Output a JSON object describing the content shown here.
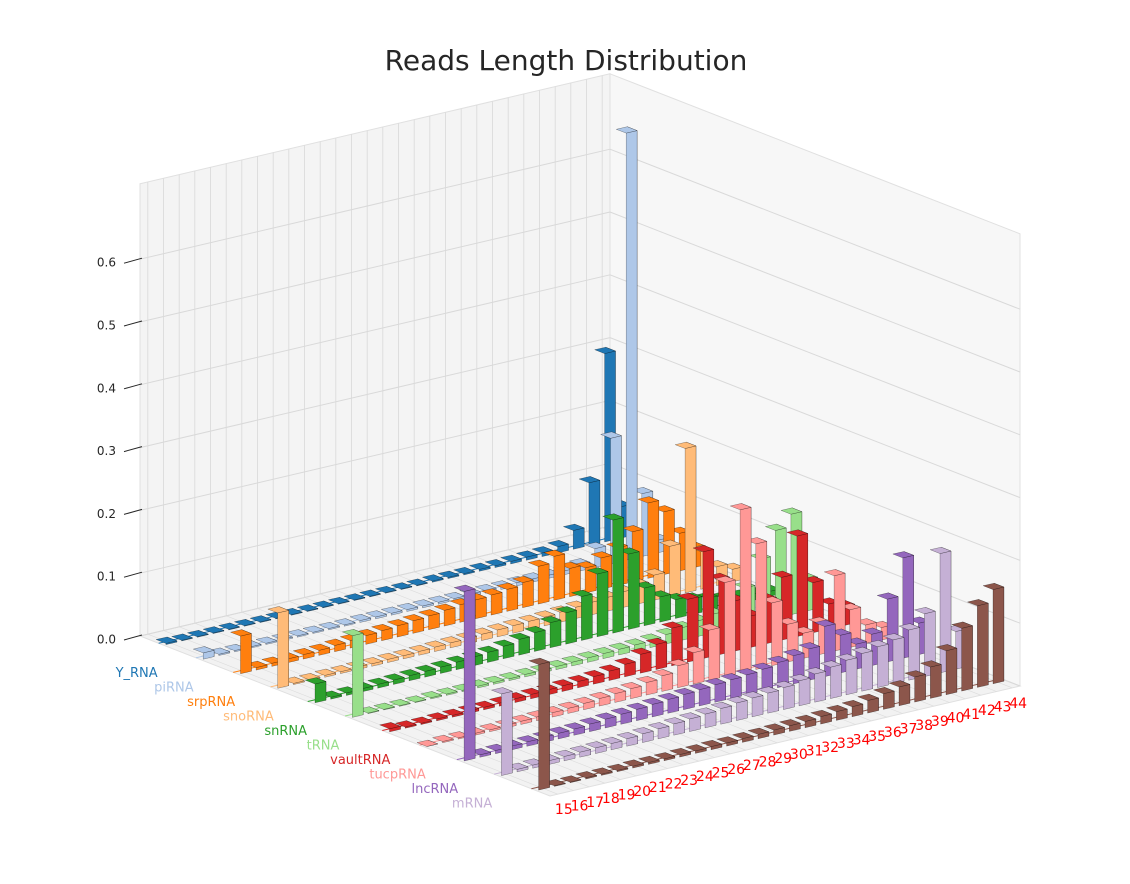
{
  "chart_data": {
    "type": "bar3d",
    "title": "Reads Length Distribution",
    "x": [
      15,
      16,
      17,
      18,
      19,
      20,
      21,
      22,
      23,
      24,
      25,
      26,
      27,
      28,
      29,
      30,
      31,
      32,
      33,
      34,
      35,
      36,
      37,
      38,
      39,
      40,
      41,
      42,
      43,
      44
    ],
    "xticks": [
      15,
      16,
      17,
      18,
      19,
      20,
      21,
      22,
      23,
      24,
      25,
      26,
      27,
      28,
      29,
      30,
      31,
      32,
      33,
      34,
      35,
      36,
      37,
      38,
      39,
      40,
      41,
      42,
      43,
      44
    ],
    "xtick_color": "#ff0000",
    "zlim": [
      0,
      0.72
    ],
    "zticks": [
      {
        "value": 0,
        "label": "0.0"
      },
      {
        "value": 0.1,
        "label": "0.1"
      },
      {
        "value": 0.2,
        "label": "0.2"
      },
      {
        "value": 0.3,
        "label": "0.3"
      },
      {
        "value": 0.4,
        "label": "0.4"
      },
      {
        "value": 0.5,
        "label": "0.5"
      },
      {
        "value": 0.6,
        "label": "0.6"
      }
    ],
    "grid": true,
    "series": [
      {
        "name": "Y_RNA",
        "color": "#1f77b4",
        "values": [
          0.002,
          0.001,
          0.001,
          0.001,
          0.001,
          0.001,
          0.001,
          0.001,
          0.001,
          0.001,
          0.001,
          0.001,
          0.001,
          0.001,
          0.001,
          0.001,
          0.001,
          0.002,
          0.002,
          0.002,
          0.003,
          0.003,
          0.004,
          0.005,
          0.006,
          0.01,
          0.03,
          0.1,
          0.3,
          0.05
        ]
      },
      {
        "name": "piRNA",
        "color": "#aec7e8",
        "values": [
          0.01,
          0.002,
          0.002,
          0.002,
          0.002,
          0.002,
          0.002,
          0.002,
          0.002,
          0.002,
          0.003,
          0.003,
          0.003,
          0.003,
          0.003,
          0.003,
          0.003,
          0.004,
          0.004,
          0.004,
          0.005,
          0.005,
          0.005,
          0.006,
          0.01,
          0.03,
          0.2,
          0.68,
          0.1,
          0.02
        ]
      },
      {
        "name": "srpRNA",
        "color": "#ff7f0e",
        "values": [
          0.06,
          0.004,
          0.005,
          0.006,
          0.007,
          0.008,
          0.01,
          0.012,
          0.014,
          0.016,
          0.018,
          0.02,
          0.022,
          0.025,
          0.028,
          0.03,
          0.032,
          0.035,
          0.04,
          0.06,
          0.07,
          0.045,
          0.04,
          0.05,
          0.06,
          0.08,
          0.12,
          0.1,
          0.06,
          0.03
        ]
      },
      {
        "name": "snoRNA",
        "color": "#ffbb78",
        "values": [
          0.12,
          0.002,
          0.002,
          0.003,
          0.003,
          0.004,
          0.004,
          0.005,
          0.005,
          0.006,
          0.007,
          0.008,
          0.009,
          0.01,
          0.011,
          0.012,
          0.013,
          0.014,
          0.016,
          0.018,
          0.02,
          0.022,
          0.025,
          0.03,
          0.04,
          0.08,
          0.23,
          0.06,
          0.03,
          0.02
        ]
      },
      {
        "name": "snRNA",
        "color": "#2ca02c",
        "values": [
          0.03,
          0.003,
          0.004,
          0.005,
          0.006,
          0.007,
          0.008,
          0.009,
          0.01,
          0.012,
          0.014,
          0.016,
          0.02,
          0.025,
          0.03,
          0.04,
          0.05,
          0.07,
          0.1,
          0.18,
          0.12,
          0.06,
          0.04,
          0.03,
          0.025,
          0.02,
          0.015,
          0.012,
          0.01,
          0.008
        ]
      },
      {
        "name": "tRNA",
        "color": "#98df8a",
        "values": [
          0.13,
          0.001,
          0.001,
          0.001,
          0.001,
          0.002,
          0.002,
          0.002,
          0.003,
          0.003,
          0.003,
          0.004,
          0.004,
          0.005,
          0.006,
          0.007,
          0.008,
          0.009,
          0.01,
          0.012,
          0.015,
          0.02,
          0.025,
          0.03,
          0.04,
          0.06,
          0.1,
          0.14,
          0.16,
          0.05
        ]
      },
      {
        "name": "vaultRNA",
        "color": "#d62728",
        "values": [
          0.005,
          0.002,
          0.002,
          0.003,
          0.003,
          0.004,
          0.004,
          0.005,
          0.006,
          0.007,
          0.008,
          0.009,
          0.01,
          0.012,
          0.015,
          0.02,
          0.03,
          0.04,
          0.06,
          0.1,
          0.17,
          0.12,
          0.08,
          0.05,
          0.07,
          0.1,
          0.16,
          0.08,
          0.04,
          0.03
        ]
      },
      {
        "name": "tucpRNA",
        "color": "#ff9896",
        "values": [
          0.0,
          0.002,
          0.002,
          0.003,
          0.003,
          0.004,
          0.005,
          0.006,
          0.007,
          0.008,
          0.01,
          0.012,
          0.014,
          0.016,
          0.02,
          0.025,
          0.035,
          0.05,
          0.08,
          0.15,
          0.26,
          0.2,
          0.1,
          0.06,
          0.04,
          0.05,
          0.12,
          0.06,
          0.03,
          0.02
        ]
      },
      {
        "name": "lncRNA",
        "color": "#9467bd",
        "values": [
          0.27,
          0.004,
          0.005,
          0.006,
          0.007,
          0.008,
          0.009,
          0.01,
          0.012,
          0.014,
          0.016,
          0.018,
          0.02,
          0.022,
          0.024,
          0.026,
          0.028,
          0.03,
          0.032,
          0.035,
          0.04,
          0.045,
          0.05,
          0.08,
          0.06,
          0.04,
          0.05,
          0.1,
          0.16,
          0.05
        ]
      },
      {
        "name": "mRNA",
        "color": "#c5b0d5",
        "values": [
          0.13,
          0.004,
          0.005,
          0.006,
          0.007,
          0.008,
          0.009,
          0.01,
          0.012,
          0.014,
          0.016,
          0.018,
          0.02,
          0.022,
          0.025,
          0.028,
          0.03,
          0.032,
          0.035,
          0.04,
          0.045,
          0.05,
          0.055,
          0.06,
          0.065,
          0.07,
          0.08,
          0.1,
          0.19,
          0.06
        ]
      },
      {
        "name": null,
        "color": "#8c564b",
        "values": [
          0.2,
          0.001,
          0.001,
          0.002,
          0.002,
          0.002,
          0.003,
          0.003,
          0.003,
          0.004,
          0.004,
          0.005,
          0.005,
          0.006,
          0.007,
          0.008,
          0.009,
          0.01,
          0.012,
          0.014,
          0.016,
          0.02,
          0.025,
          0.03,
          0.04,
          0.05,
          0.07,
          0.1,
          0.13,
          0.15
        ]
      }
    ]
  }
}
